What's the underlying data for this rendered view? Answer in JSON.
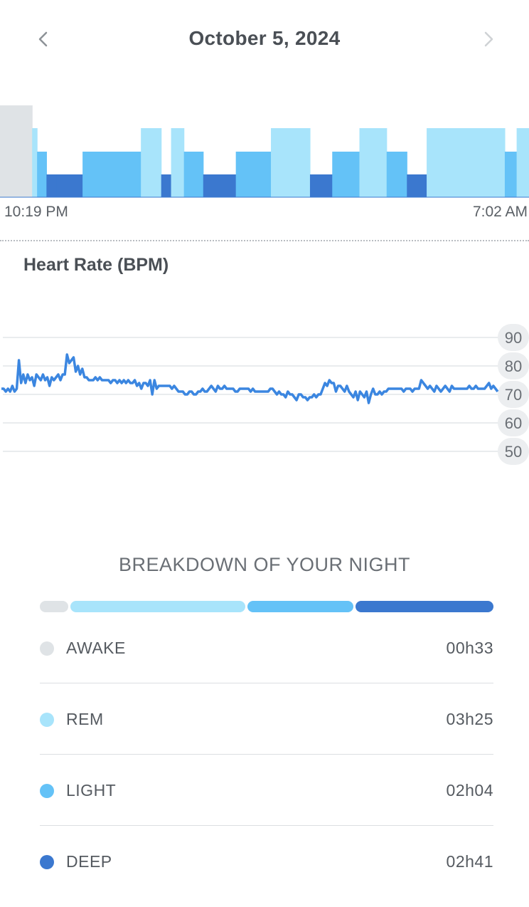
{
  "header": {
    "date": "October 5, 2024",
    "prev_icon": "chevron-left-icon",
    "next_icon": "chevron-right-icon"
  },
  "hypnogram": {
    "start_time": "10:19 PM",
    "end_time": "7:02 AM",
    "stages": [
      "AWAKE",
      "REM",
      "LIGHT",
      "DEEP",
      "DEEP",
      "LIGHT",
      "REM",
      "DEEP",
      "REM",
      "LIGHT",
      "DEEP",
      "LIGHT",
      "REM",
      "DEEP",
      "LIGHT",
      "REM",
      "LIGHT",
      "DEEP",
      "REM",
      "LIGHT",
      "REM"
    ],
    "stage_fractions": [
      0.065,
      0.01,
      0.019,
      0.02,
      0.053,
      0.118,
      0.041,
      0.02,
      0.026,
      0.039,
      0.066,
      0.071,
      0.079,
      0.045,
      0.055,
      0.055,
      0.041,
      0.04,
      0.158,
      0.024,
      0.025
    ]
  },
  "heart_rate": {
    "title": "Heart Rate (BPM)",
    "y_ticks": [
      "90",
      "80",
      "70",
      "60",
      "50"
    ],
    "ylim": [
      50,
      90
    ]
  },
  "chart_data": {
    "type": "line",
    "title": "Heart Rate (BPM)",
    "ylim": [
      50,
      90
    ],
    "y_ticks": [
      90,
      80,
      70,
      60,
      50
    ],
    "series": [
      {
        "values": [
          72,
          72,
          71,
          72,
          71,
          73,
          71,
          72,
          82,
          74,
          77,
          74,
          77,
          75,
          76,
          73,
          77,
          76,
          75,
          77,
          75,
          76,
          73,
          76,
          75,
          76,
          77,
          75,
          77,
          77,
          84,
          81,
          82,
          83,
          78,
          80,
          77,
          79,
          76,
          76,
          75,
          75,
          75,
          76,
          75,
          76,
          75,
          75,
          75,
          75,
          74,
          75,
          75,
          74,
          75,
          74,
          75,
          74,
          75,
          74,
          74,
          75,
          73,
          74,
          72,
          74,
          74,
          73,
          75,
          70,
          75,
          72,
          73,
          73,
          73,
          73,
          73,
          73,
          72,
          73,
          72,
          71,
          71,
          71,
          70,
          70,
          71,
          71,
          70,
          70,
          71,
          71,
          72,
          71,
          71,
          72,
          73,
          72,
          71,
          73,
          72,
          72,
          73,
          72,
          72,
          72,
          72,
          71,
          71,
          72,
          72,
          72,
          72,
          72,
          71,
          72,
          71,
          71,
          71,
          71,
          71,
          71,
          71,
          72,
          72,
          71,
          70,
          71,
          70,
          70,
          69,
          71,
          70,
          70,
          69,
          68,
          70,
          70,
          69,
          69,
          68,
          69,
          69,
          70,
          69,
          70,
          70,
          72,
          74,
          73,
          75,
          74,
          74,
          71,
          73,
          73,
          72,
          71,
          73,
          71,
          70,
          69,
          71,
          68,
          71,
          70,
          69,
          71,
          67,
          70,
          72,
          70,
          70,
          71,
          70,
          71,
          71,
          72,
          72,
          72,
          72,
          72,
          72,
          72,
          71,
          72,
          72,
          72,
          71,
          72,
          72,
          72,
          75,
          74,
          73,
          72,
          73,
          72,
          71,
          73,
          72,
          71,
          72,
          73,
          72,
          71,
          73,
          72,
          72,
          72,
          72,
          72,
          72,
          72,
          73,
          72,
          72,
          73,
          72,
          72,
          72,
          72,
          73,
          74,
          72,
          73,
          72,
          71
        ]
      }
    ]
  },
  "breakdown": {
    "title": "BREAKDOWN OF YOUR NIGHT",
    "rows": [
      {
        "label": "AWAKE",
        "value": "00h33",
        "color": "#dfe3e6",
        "minutes": 33
      },
      {
        "label": "REM",
        "value": "03h25",
        "color": "#a8e4fb",
        "minutes": 205
      },
      {
        "label": "LIGHT",
        "value": "02h04",
        "color": "#64c2f7",
        "minutes": 124
      },
      {
        "label": "DEEP",
        "value": "02h41",
        "color": "#3b78cf",
        "minutes": 161
      }
    ]
  },
  "colors": {
    "awake": "#dfe3e6",
    "rem": "#a8e4fb",
    "light": "#64c2f7",
    "deep": "#3b78cf",
    "hr_line": "#3b86e0",
    "grid": "#e2e5e8"
  }
}
